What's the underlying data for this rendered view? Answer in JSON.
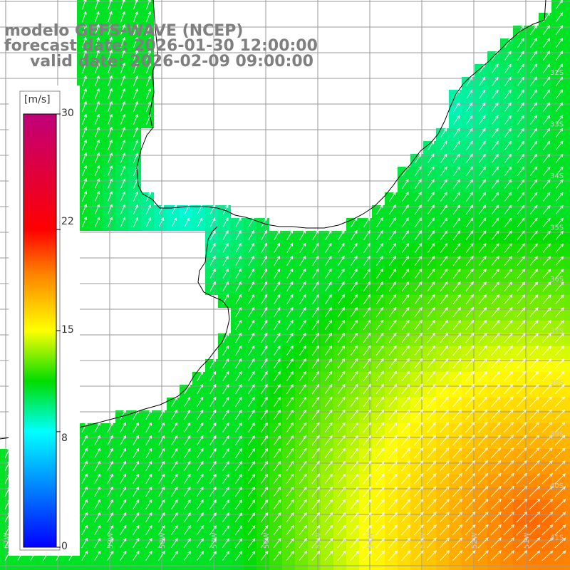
{
  "title": {
    "line1": "modelo GEFS-WAVE (NCEP)",
    "line2": "forecast date: 2026-01-30 12:00:00",
    "line3": "valid date: 2026-02-09 09:00:00"
  },
  "colorbar": {
    "unit": "[m/s]",
    "min": 0,
    "max": 30,
    "ticks": [
      "30",
      "22",
      "15",
      "8",
      "0"
    ],
    "stops": [
      "#0000ff",
      "#00ffff",
      "#00dd00",
      "#ffff00",
      "#ff8000",
      "#ff0000",
      "#c0007a"
    ]
  },
  "map": {
    "lon_labels": [
      "61W",
      "60W",
      "59W",
      "58W",
      "57W",
      "56W",
      "55W",
      "54W",
      "53W",
      "52W",
      "51W"
    ],
    "lat_labels": [
      "32S",
      "33S",
      "34S",
      "35S",
      "36S",
      "37S",
      "38S",
      "39S",
      "40S",
      "41S"
    ],
    "grid_color": "#9a9a9a",
    "land_color": "#ffffff",
    "coast_color": "#000000",
    "arrow_color": "#ffffff",
    "wind_direction": "southwesterly"
  }
}
